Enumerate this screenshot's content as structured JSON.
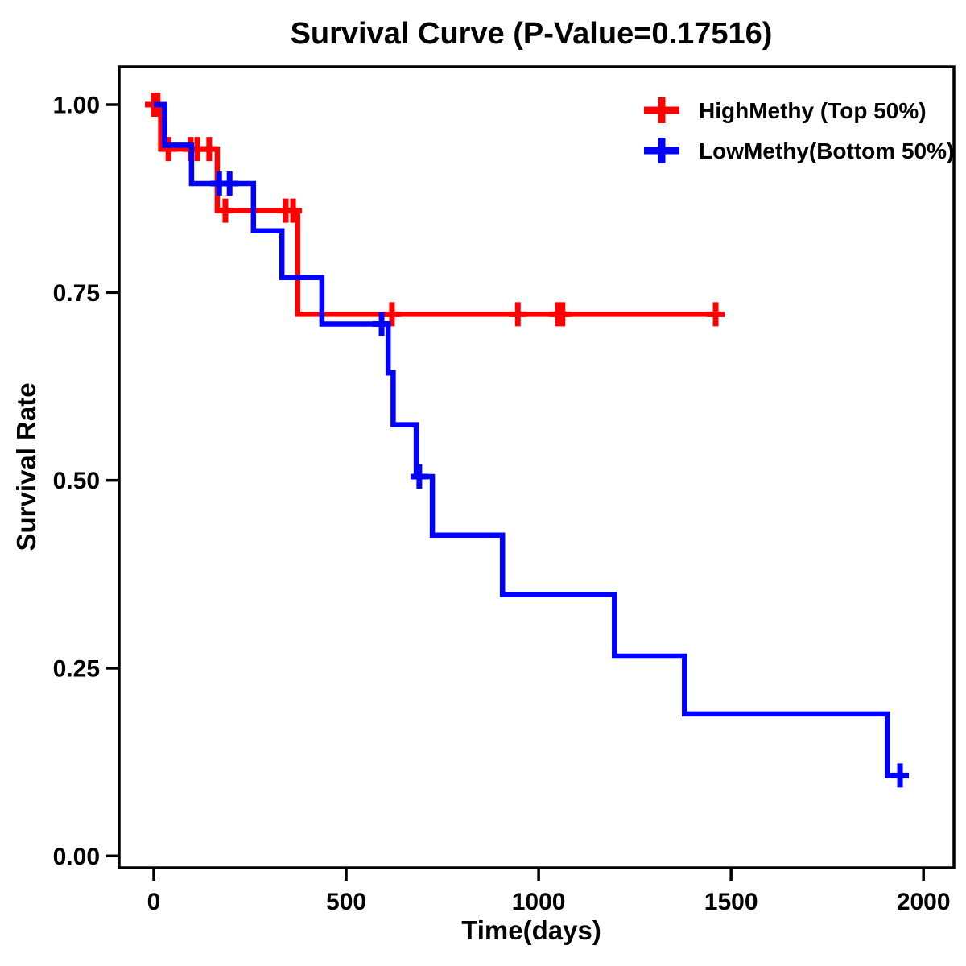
{
  "page": {
    "background_color": "#FFFFFF",
    "text_color": "#000000"
  },
  "chart_data": {
    "type": "line",
    "subtype": "kaplan-meier-survival-step",
    "title": "Survival Curve (P-Value=0.17516)",
    "p_value": "0.17516",
    "xlabel": "Time(days)",
    "ylabel": "Survival Rate",
    "xlim": [
      0,
      2000
    ],
    "ylim": [
      0.0,
      1.0
    ],
    "grid": false,
    "legend_position": "top-right",
    "axis_color": "#000000",
    "xticks": [
      {
        "value": 0,
        "label": "0"
      },
      {
        "value": 500,
        "label": "500"
      },
      {
        "value": 1000,
        "label": "1000"
      },
      {
        "value": 1500,
        "label": "1500"
      },
      {
        "value": 2000,
        "label": "2000"
      }
    ],
    "yticks": [
      {
        "value": 1.0,
        "label": "1.00"
      },
      {
        "value": 0.75,
        "label": "0.75"
      },
      {
        "value": 0.5,
        "label": "0.50"
      },
      {
        "value": 0.25,
        "label": "0.25"
      },
      {
        "value": 0.0,
        "label": "0.00"
      }
    ],
    "series": [
      {
        "id": "highmethy",
        "name": "HighMethy (Top 50%)",
        "color": "#FF0000",
        "step_points": [
          [
            0,
            1.0
          ],
          [
            18,
            0.941
          ],
          [
            165,
            0.859
          ],
          [
            374,
            0.721
          ]
        ],
        "end_time": 1470,
        "censor_marks": [
          [
            0,
            1.0
          ],
          [
            10,
            1.0
          ],
          [
            38,
            0.941
          ],
          [
            96,
            0.941
          ],
          [
            113,
            0.941
          ],
          [
            144,
            0.941
          ],
          [
            186,
            0.859
          ],
          [
            343,
            0.859
          ],
          [
            362,
            0.859
          ],
          [
            619,
            0.721
          ],
          [
            946,
            0.721
          ],
          [
            1050,
            0.721
          ],
          [
            1062,
            0.721
          ],
          [
            1460,
            0.721
          ]
        ]
      },
      {
        "id": "lowmethy",
        "name": "LowMethy(Bottom 50%)",
        "color": "#0000FF",
        "step_points": [
          [
            0,
            1.0
          ],
          [
            28,
            0.946
          ],
          [
            98,
            0.895
          ],
          [
            259,
            0.832
          ],
          [
            333,
            0.77
          ],
          [
            437,
            0.708
          ],
          [
            609,
            0.643
          ],
          [
            622,
            0.574
          ],
          [
            682,
            0.505
          ],
          [
            724,
            0.427
          ],
          [
            906,
            0.348
          ],
          [
            1197,
            0.266
          ],
          [
            1379,
            0.189
          ],
          [
            1906,
            0.107
          ]
        ],
        "end_time": 1950,
        "censor_marks": [
          [
            170,
            0.895
          ],
          [
            197,
            0.895
          ],
          [
            592,
            0.708
          ],
          [
            690,
            0.505
          ],
          [
            1939,
            0.107
          ]
        ]
      }
    ]
  }
}
